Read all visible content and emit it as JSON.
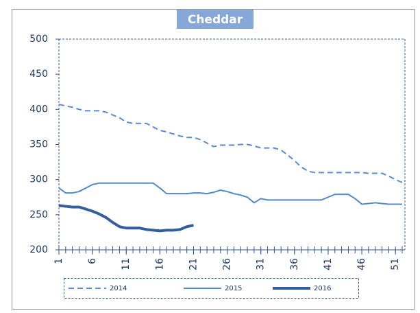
{
  "chart_data": {
    "type": "line",
    "title": "Cheddar",
    "x": [
      1,
      2,
      3,
      4,
      5,
      6,
      7,
      8,
      9,
      10,
      11,
      12,
      13,
      14,
      15,
      16,
      17,
      18,
      19,
      20,
      21,
      22,
      23,
      24,
      25,
      26,
      27,
      28,
      29,
      30,
      31,
      32,
      33,
      34,
      35,
      36,
      37,
      38,
      39,
      40,
      41,
      42,
      43,
      44,
      45,
      46,
      47,
      48,
      49,
      50,
      51,
      52
    ],
    "xlim": [
      1,
      52
    ],
    "xticks": [
      1,
      6,
      11,
      16,
      21,
      26,
      31,
      36,
      41,
      46,
      51
    ],
    "ylim": [
      200,
      500
    ],
    "yticks": [
      200,
      250,
      300,
      350,
      400,
      450,
      500
    ],
    "legend": "bottom",
    "series": [
      {
        "name": "2014",
        "color": "#5a8ad6",
        "line_style": "dashed",
        "line_width": 2,
        "values": [
          407,
          405,
          403,
          400,
          398,
          398,
          398,
          396,
          392,
          388,
          382,
          380,
          380,
          380,
          375,
          370,
          368,
          365,
          362,
          360,
          360,
          357,
          352,
          347,
          349,
          349,
          349,
          350,
          350,
          348,
          345,
          345,
          345,
          342,
          335,
          327,
          318,
          312,
          310,
          310,
          310,
          310,
          310,
          310,
          310,
          310,
          309,
          309,
          309,
          305,
          300,
          296
        ]
      },
      {
        "name": "2015",
        "color": "#5288cc",
        "line_style": "solid",
        "line_width": 2,
        "values": [
          288,
          281,
          281,
          283,
          288,
          293,
          295,
          295,
          295,
          295,
          295,
          295,
          295,
          295,
          295,
          288,
          280,
          280,
          280,
          280,
          281,
          281,
          280,
          282,
          285,
          283,
          280,
          278,
          275,
          267,
          273,
          271,
          271,
          271,
          271,
          271,
          271,
          271,
          271,
          271,
          275,
          279,
          279,
          279,
          273,
          265,
          266,
          267,
          266,
          265,
          265,
          265
        ]
      },
      {
        "name": "2016",
        "color": "#335f9e",
        "line_style": "solid",
        "line_width": 4,
        "values": [
          263,
          262,
          261,
          261,
          258,
          255,
          251,
          246,
          239,
          233,
          231,
          231,
          231,
          229,
          228,
          227,
          228,
          228,
          229,
          233,
          235,
          null,
          null,
          null,
          null,
          null,
          null,
          null,
          null,
          null,
          null,
          null,
          null,
          null,
          null,
          null,
          null,
          null,
          null,
          null,
          null,
          null,
          null,
          null,
          null,
          null,
          null,
          null,
          null,
          null,
          null,
          null
        ]
      }
    ]
  }
}
